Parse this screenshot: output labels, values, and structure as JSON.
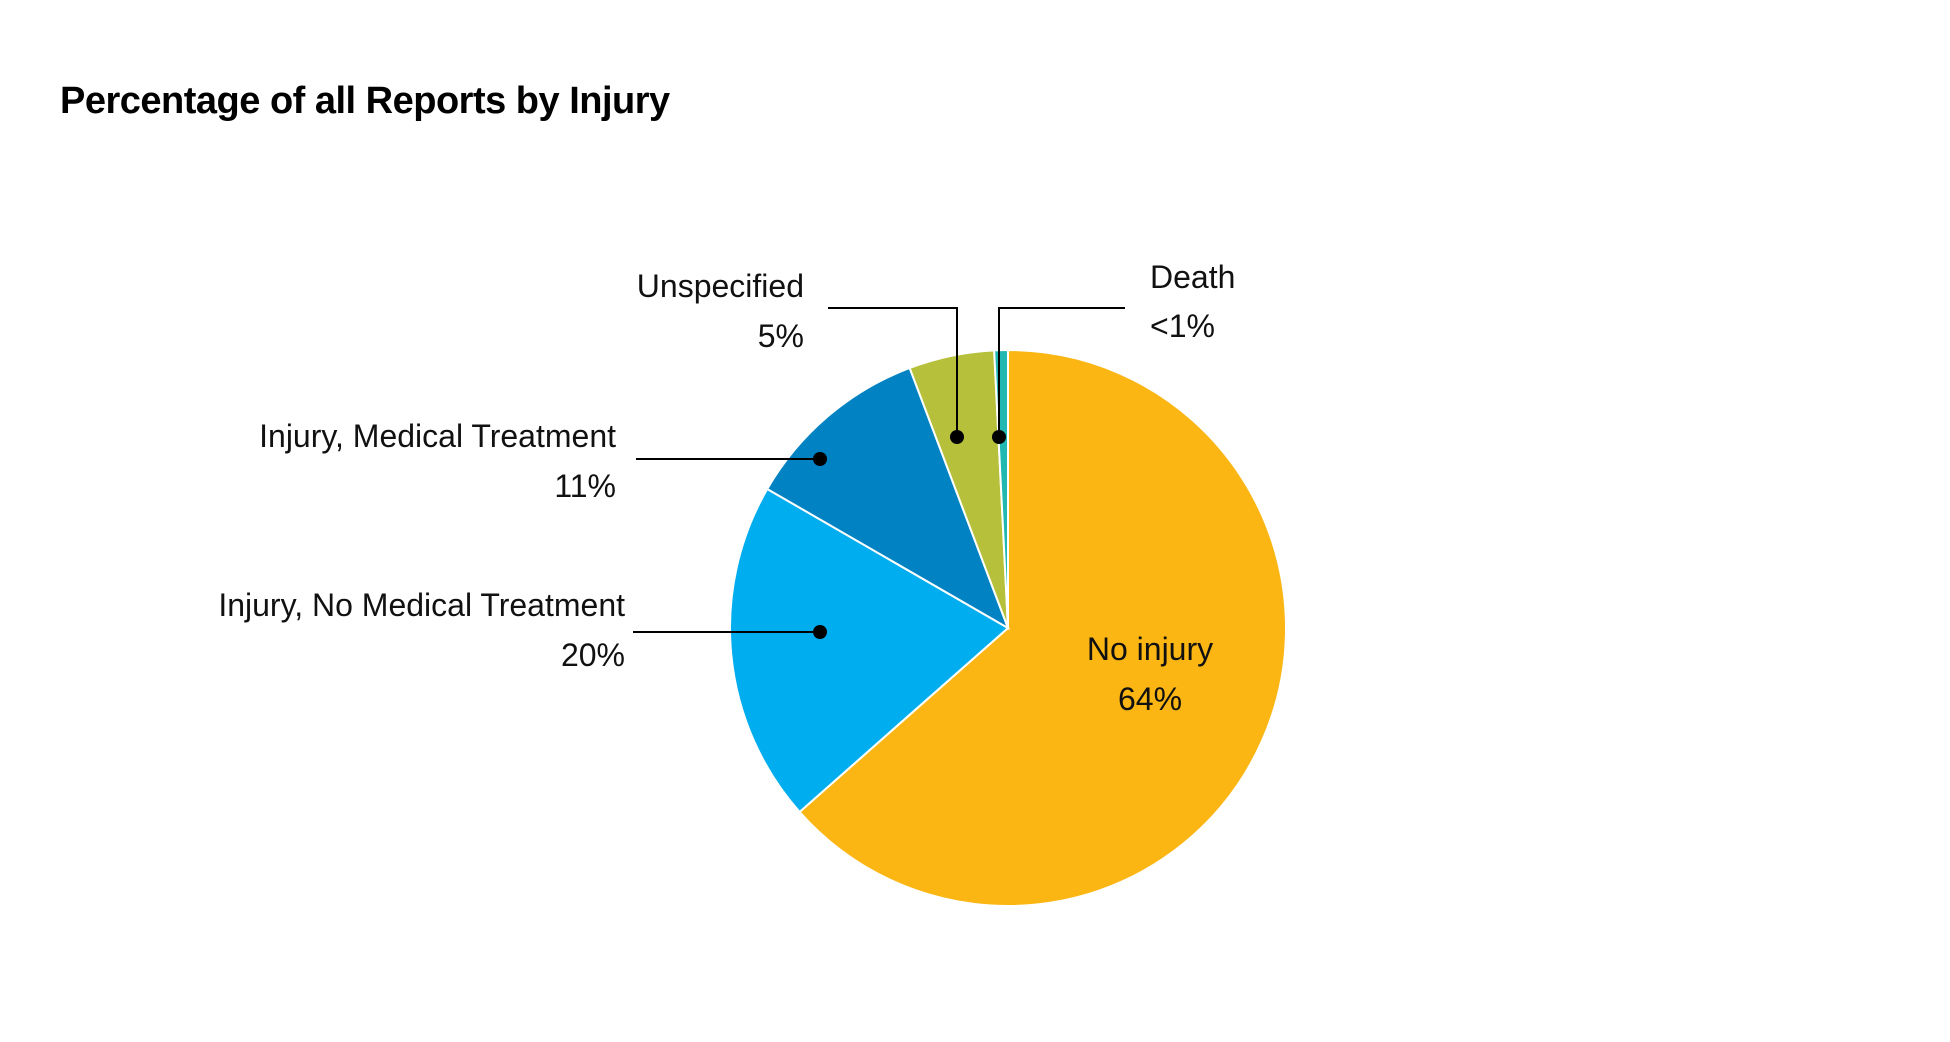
{
  "chart_data": {
    "type": "pie",
    "title": "Percentage of all Reports by Injury",
    "slices": [
      {
        "name": "No injury",
        "label": "64%",
        "value": 64,
        "color": "#FBB614"
      },
      {
        "name": "Injury, No Medical Treatment",
        "label": "20%",
        "value": 20,
        "color": "#00ADEE"
      },
      {
        "name": "Injury, Medical Treatment",
        "label": "11%",
        "value": 11,
        "color": "#0082C3"
      },
      {
        "name": "Unspecified",
        "label": "5%",
        "value": 5,
        "color": "#B6C03A"
      },
      {
        "name": "Death",
        "label": "<1%",
        "value": 0.8,
        "color": "#20B8B0"
      }
    ],
    "start": "12 o'clock",
    "direction": "clockwise"
  }
}
